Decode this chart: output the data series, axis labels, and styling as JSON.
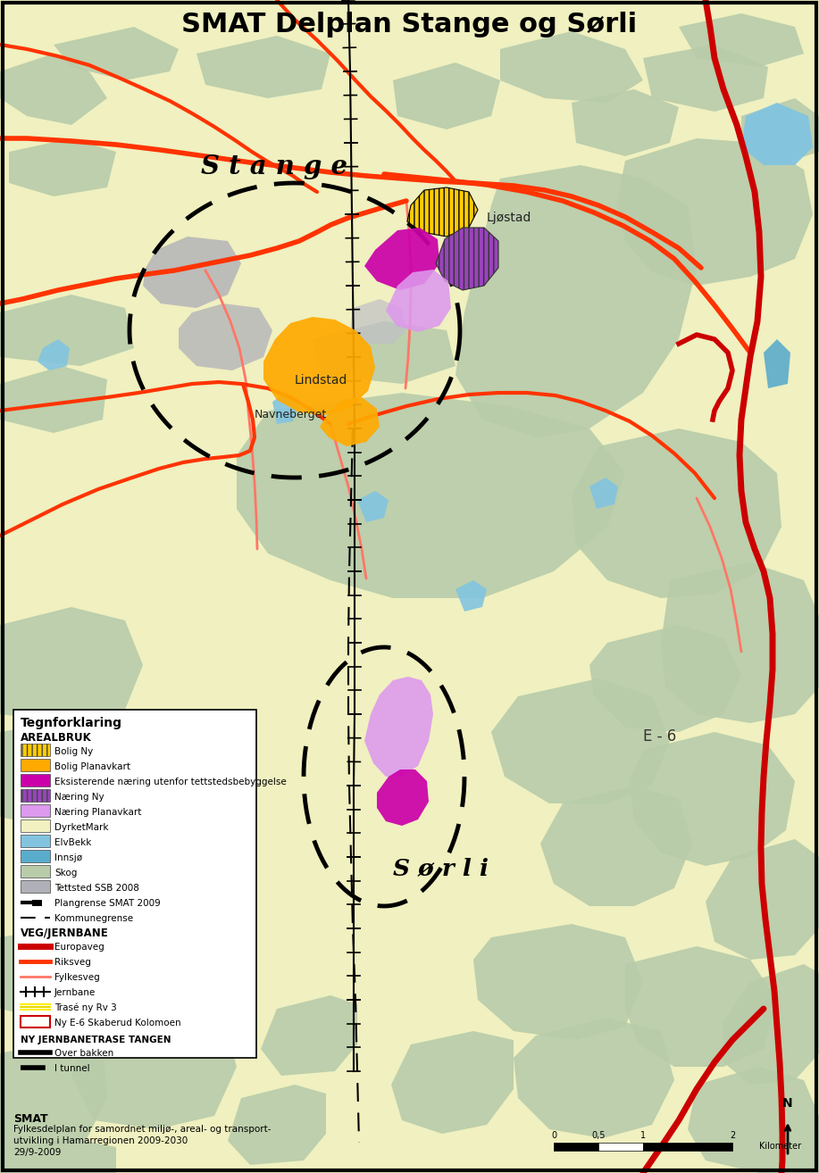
{
  "title": "SMAT Delplan Stange og Sørli",
  "bg_map": "#f0f0c0",
  "forest_color": "#b8ccaa",
  "forest_light": "#c8d8b8",
  "water_color": "#82c4e0",
  "water_dark": "#5aaccc",
  "tettsted_color": "#b0b0b8",
  "bolig_ny_color": "#ffcc00",
  "bolig_plan_color": "#ffaa00",
  "naering_eksist_color": "#cc00aa",
  "naering_ny_color": "#9966cc",
  "naering_plan_color": "#dd99ee",
  "europaveg_color": "#cc0000",
  "riksveg_color": "#ff3300",
  "fylkesveg_color": "#ff7766",
  "footer_text1": "SMAT",
  "footer_text2": "Fylkesdelplan for samordnet miljø-, areal- og transport-",
  "footer_text3": "utvikling i Hamarregionen 2009-2030",
  "footer_date": "29/9-2009"
}
